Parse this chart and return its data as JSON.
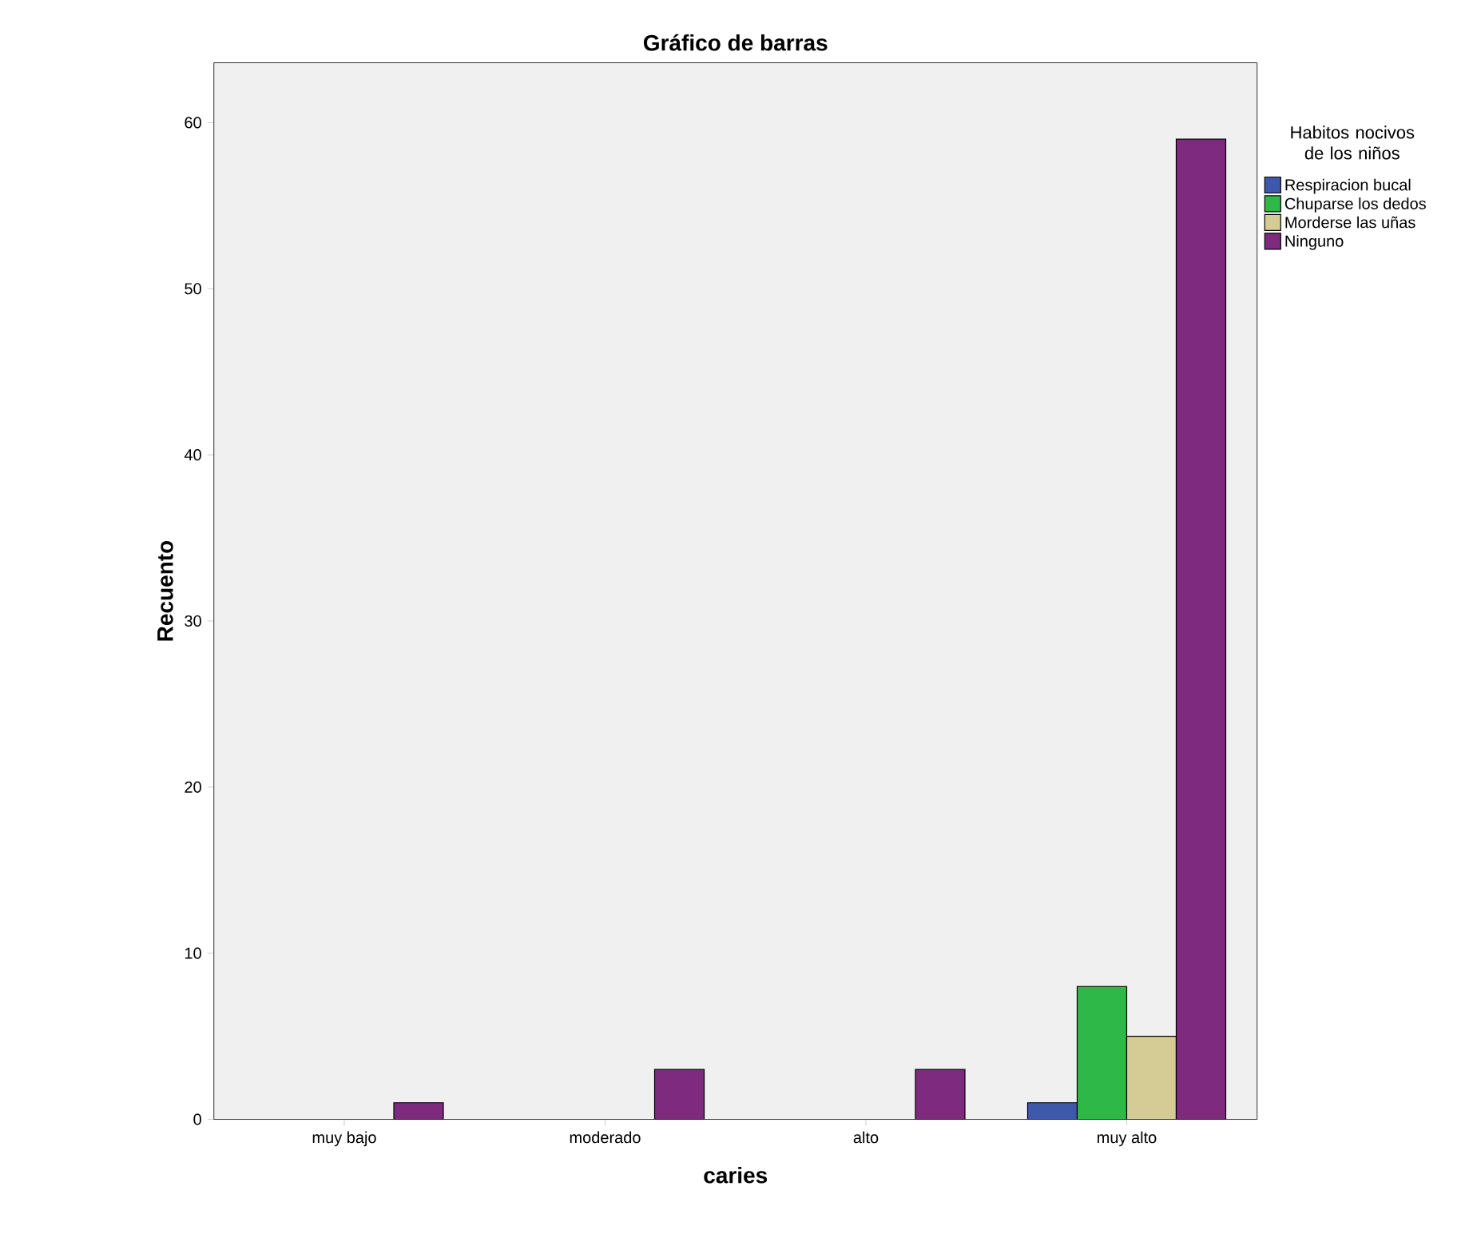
{
  "chart_data": {
    "type": "bar",
    "title": "Gráfico de barras",
    "xlabel": "caries",
    "ylabel": "Recuento",
    "legend_title": "Habitos nocivos de los niños",
    "categories": [
      "muy bajo",
      "moderado",
      "alto",
      "muy alto"
    ],
    "series": [
      {
        "name": "Respiracion bucal",
        "color": "#3e58ac",
        "values": [
          null,
          null,
          null,
          1
        ]
      },
      {
        "name": "Chuparse los dedos",
        "color": "#2eb848",
        "values": [
          null,
          null,
          null,
          8
        ]
      },
      {
        "name": "Morderse las uñas",
        "color": "#d4cc94",
        "values": [
          null,
          null,
          null,
          5
        ]
      },
      {
        "name": "Ninguno",
        "color": "#7e2a7e",
        "values": [
          1,
          3,
          3,
          59
        ]
      }
    ],
    "ylim": [
      0,
      63.6
    ],
    "yticks": [
      0,
      10,
      20,
      30,
      40,
      50,
      60
    ],
    "legend": "top right",
    "grid": false
  }
}
